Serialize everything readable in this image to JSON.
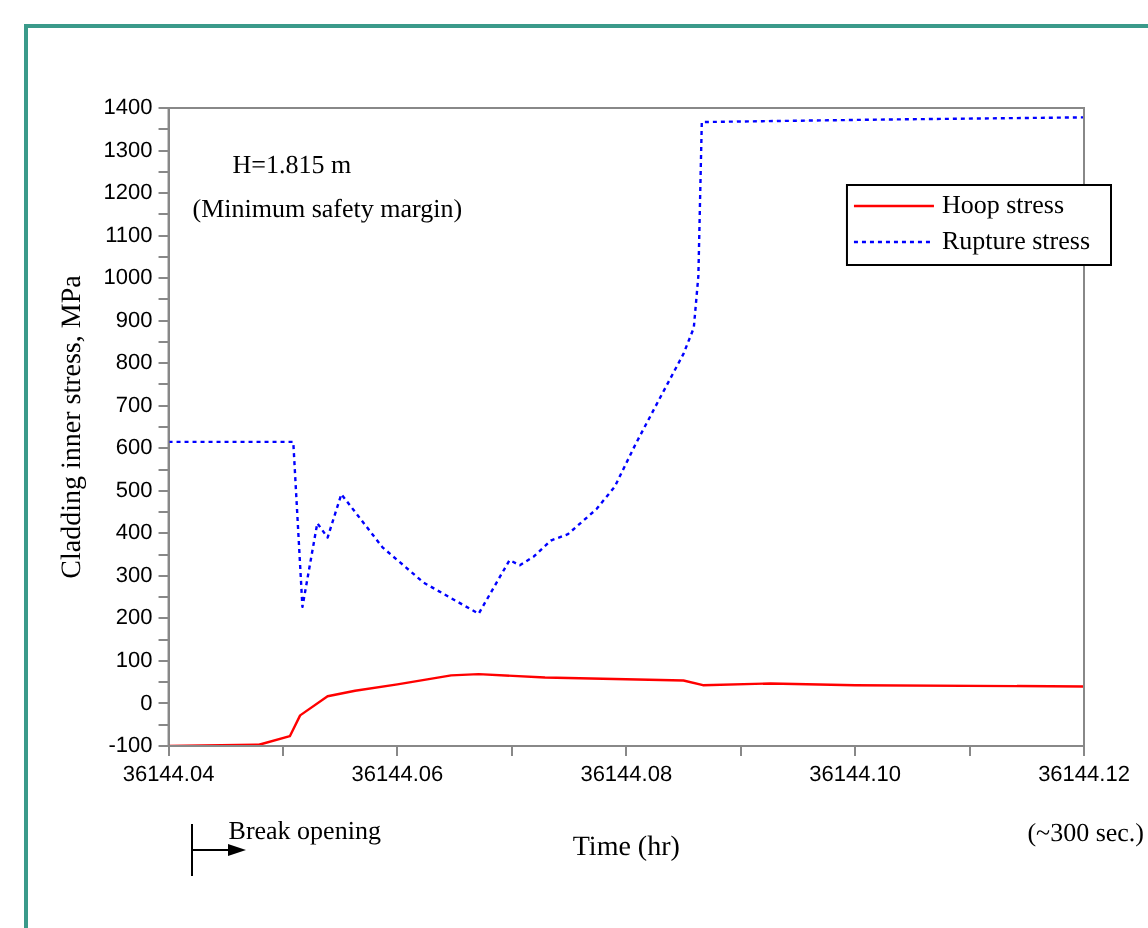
{
  "chart_data": {
    "type": "line",
    "xlabel": "Time (hr)",
    "ylabel": "Cladding inner stress, MPa",
    "annotations": [
      "H=1.815 m",
      "(Minimum safety margin)",
      "Break opening",
      "(~300 sec.)"
    ],
    "xlim": [
      36144.04,
      36144.12
    ],
    "xticks": [
      {
        "value": 36144.04,
        "label": "36144.04"
      },
      {
        "value": 36144.05,
        "label": null
      },
      {
        "value": 36144.06,
        "label": "36144.06"
      },
      {
        "value": 36144.07,
        "label": null
      },
      {
        "value": 36144.08,
        "label": "36144.08"
      },
      {
        "value": 36144.09,
        "label": null
      },
      {
        "value": 36144.1,
        "label": "36144.10"
      },
      {
        "value": 36144.11,
        "label": null
      },
      {
        "value": 36144.12,
        "label": "36144.12"
      }
    ],
    "ylim": [
      -100,
      1400
    ],
    "yticks": [
      -100,
      {
        "value": -50,
        "label": null
      },
      0,
      {
        "value": 50,
        "label": null
      },
      100,
      {
        "value": 150,
        "label": null
      },
      200,
      {
        "value": 250,
        "label": null
      },
      300,
      {
        "value": 350,
        "label": null
      },
      400,
      {
        "value": 450,
        "label": null
      },
      500,
      {
        "value": 550,
        "label": null
      },
      600,
      {
        "value": 650,
        "label": null
      },
      700,
      {
        "value": 750,
        "label": null
      },
      800,
      {
        "value": 850,
        "label": null
      },
      900,
      {
        "value": 950,
        "label": null
      },
      1000,
      {
        "value": 1050,
        "label": null
      },
      1100,
      {
        "value": 1150,
        "label": null
      },
      1200,
      {
        "value": 1250,
        "label": null
      },
      1300,
      {
        "value": 1350,
        "label": null
      },
      1400
    ],
    "grid": false,
    "legend": "top right",
    "marker": "none",
    "series": [
      {
        "name": "Hoop stress",
        "color": "#ff0000",
        "line_style": "solid",
        "x": [
          36144.04,
          36144.0479,
          36144.0506,
          36144.0515,
          36144.0539,
          36144.0563,
          36144.06,
          36144.0647,
          36144.0671,
          36144.0729,
          36144.085,
          36144.0867,
          36144.0926,
          36144.1,
          36144.12
        ],
        "values": [
          -100,
          -97,
          -77,
          -28,
          17,
          30,
          45,
          66,
          69,
          61,
          54,
          43,
          47,
          43,
          40
        ]
      },
      {
        "name": "Rupture stress",
        "color": "#0000ff",
        "line_style": "dotted",
        "x": [
          36144.04,
          36144.0509,
          36144.0517,
          36144.053,
          36144.0539,
          36144.0551,
          36144.0587,
          36144.0623,
          36144.0671,
          36144.0698,
          36144.0707,
          36144.0719,
          36144.0734,
          36144.0749,
          36144.0774,
          36144.079,
          36144.0808,
          36144.0829,
          36144.085,
          36144.0859,
          36144.0863,
          36144.0866,
          36144.1029,
          36144.12
        ],
        "values": [
          615,
          615,
          227,
          424,
          390,
          492,
          367,
          284,
          211,
          337,
          325,
          345,
          383,
          398,
          457,
          510,
          609,
          716,
          822,
          883,
          1005,
          1367,
          1373,
          1378
        ]
      }
    ]
  }
}
